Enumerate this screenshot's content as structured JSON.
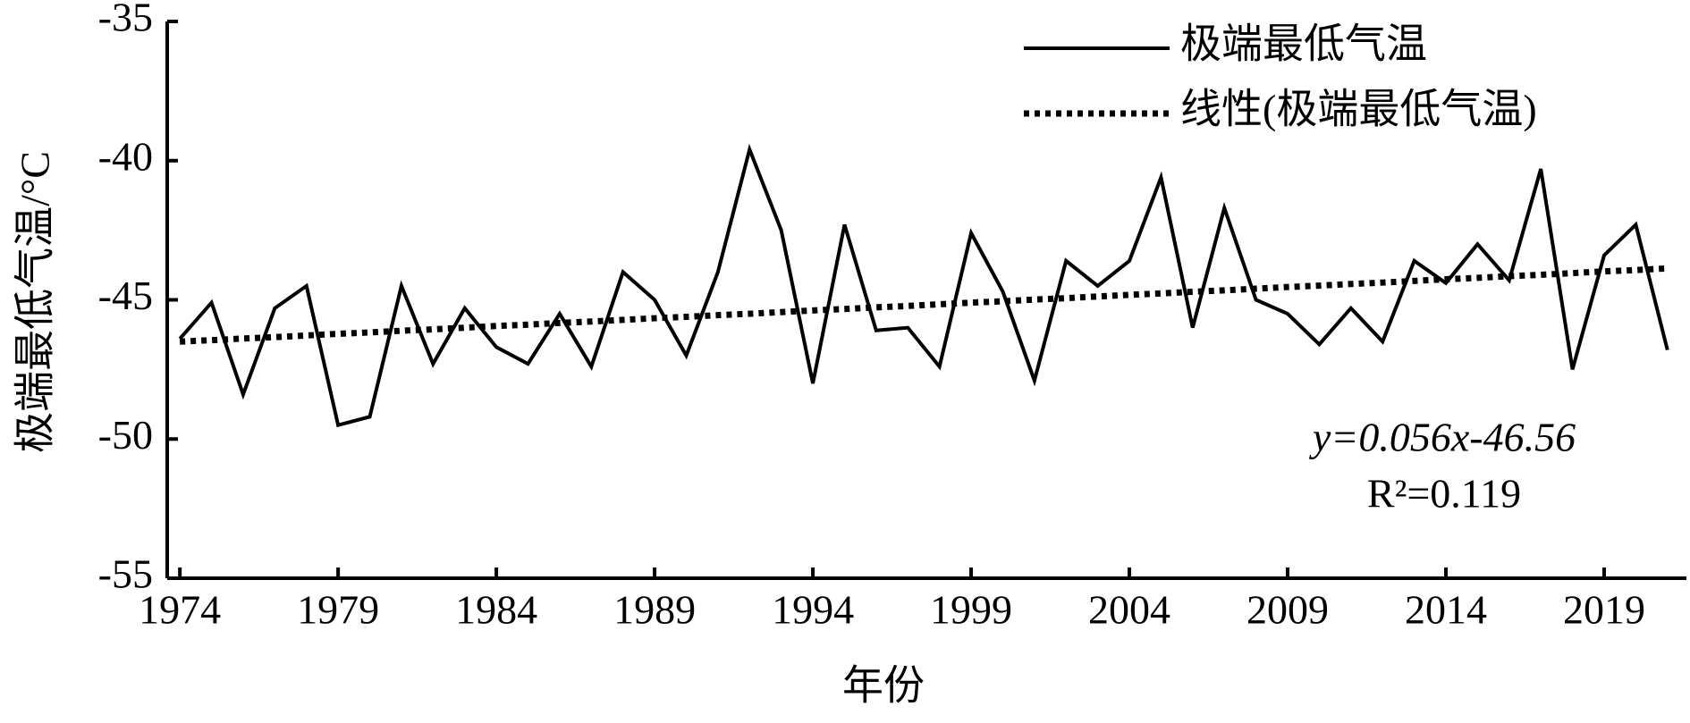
{
  "chart_data": {
    "type": "line",
    "y_label": "极端最低气温/°C",
    "x_label": "年份",
    "x": [
      1974,
      1975,
      1976,
      1977,
      1978,
      1979,
      1980,
      1981,
      1982,
      1983,
      1984,
      1985,
      1986,
      1987,
      1988,
      1989,
      1990,
      1991,
      1992,
      1993,
      1994,
      1995,
      1996,
      1997,
      1998,
      1999,
      2000,
      2001,
      2002,
      2003,
      2004,
      2005,
      2006,
      2007,
      2008,
      2009,
      2010,
      2011,
      2012,
      2013,
      2014,
      2015,
      2016,
      2017,
      2018,
      2019,
      2020,
      2021
    ],
    "series": [
      {
        "name": "极端最低气温",
        "color": "#000000",
        "style": "solid",
        "values": [
          -46.4,
          -45.1,
          -48.4,
          -45.3,
          -44.5,
          -49.5,
          -49.2,
          -44.5,
          -47.3,
          -45.3,
          -46.7,
          -47.3,
          -45.5,
          -47.4,
          -44.0,
          -45.0,
          -47.0,
          -44.0,
          -39.6,
          -42.5,
          -48.0,
          -42.3,
          -46.1,
          -46.0,
          -47.4,
          -42.6,
          -44.7,
          -47.9,
          -43.6,
          -44.5,
          -43.6,
          -40.6,
          -46.0,
          -41.7,
          -45.0,
          -45.5,
          -46.6,
          -45.3,
          -46.5,
          -43.6,
          -44.4,
          -43.0,
          -44.3,
          -40.3,
          -47.5,
          -43.4,
          -42.3,
          -46.8
        ]
      },
      {
        "name": "线性(极端最低气温)",
        "color": "#000000",
        "style": "dotted",
        "values": [
          -46.5,
          -46.45,
          -46.39,
          -46.34,
          -46.28,
          -46.22,
          -46.17,
          -46.11,
          -46.06,
          -46.0,
          -45.94,
          -45.89,
          -45.83,
          -45.78,
          -45.72,
          -45.66,
          -45.61,
          -45.55,
          -45.5,
          -45.44,
          -45.38,
          -45.33,
          -45.27,
          -45.22,
          -45.16,
          -45.1,
          -45.05,
          -44.99,
          -44.94,
          -44.88,
          -44.82,
          -44.77,
          -44.71,
          -44.66,
          -44.6,
          -44.54,
          -44.49,
          -44.43,
          -44.38,
          -44.32,
          -44.26,
          -44.21,
          -44.15,
          -44.1,
          -44.04,
          -43.98,
          -43.93,
          -43.87
        ]
      }
    ],
    "xlim": [
      1973.6,
      2021.6
    ],
    "xticks": [
      1974,
      1979,
      1984,
      1989,
      1994,
      1999,
      2004,
      2009,
      2014,
      2019
    ],
    "ylim": [
      -55,
      -35
    ],
    "yticks": [
      -55,
      -50,
      -45,
      -40,
      -35
    ],
    "legend": "top-right",
    "annotations": [
      "y=0.056x-46.56",
      "R²=0.119"
    ]
  }
}
